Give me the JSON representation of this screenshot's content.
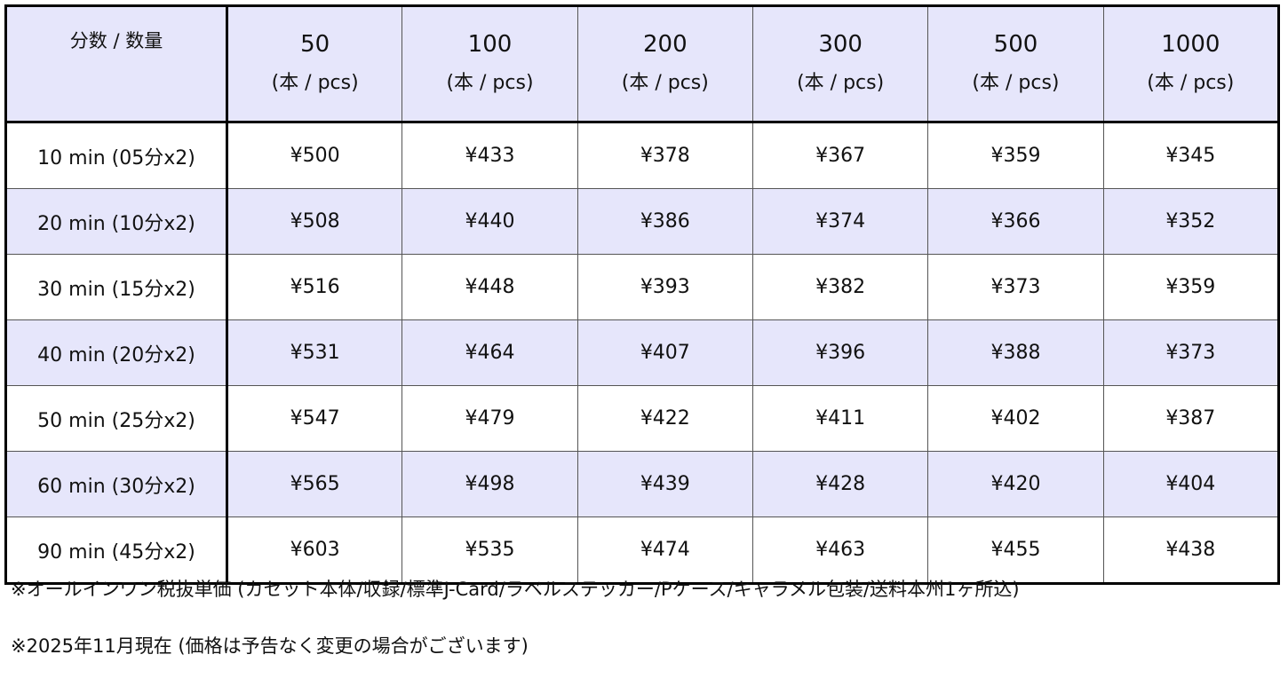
{
  "table": {
    "corner_label": "分数 / 数量",
    "unit_label": "(本 / pcs)",
    "quantities": [
      "50",
      "100",
      "200",
      "300",
      "500",
      "1000"
    ],
    "rows": [
      {
        "label": "10 min (05分x2)",
        "prices": [
          "¥500",
          "¥433",
          "¥378",
          "¥367",
          "¥359",
          "¥345"
        ]
      },
      {
        "label": "20 min (10分x2)",
        "prices": [
          "¥508",
          "¥440",
          "¥386",
          "¥374",
          "¥366",
          "¥352"
        ]
      },
      {
        "label": "30 min  (15分x2)",
        "prices": [
          "¥516",
          "¥448",
          "¥393",
          "¥382",
          "¥373",
          "¥359"
        ]
      },
      {
        "label": "40 min  (20分x2)",
        "prices": [
          "¥531",
          "¥464",
          "¥407",
          "¥396",
          "¥388",
          "¥373"
        ]
      },
      {
        "label": "50 min  (25分x2)",
        "prices": [
          "¥547",
          "¥479",
          "¥422",
          "¥411",
          "¥402",
          "¥387"
        ]
      },
      {
        "label": "60 min  (30分x2)",
        "prices": [
          "¥565",
          "¥498",
          "¥439",
          "¥428",
          "¥420",
          "¥404"
        ]
      },
      {
        "label": "90 min  (45分x2)",
        "prices": [
          "¥603",
          "¥535",
          "¥474",
          "¥463",
          "¥455",
          "¥438"
        ]
      }
    ]
  },
  "notes": {
    "line1": "※オールインワン税抜単価 (カセット本体/収録/標準J-Card/ラベルステッカー/Pケース/キャラメル包装/送料本州1ヶ所込)",
    "line2": "※2025年11月現在 (価格は予告なく変更の場合がございます)"
  },
  "colors": {
    "header_background": "#e6e6fb",
    "stripe_background": "#e6e6fb",
    "border": "#000000"
  }
}
